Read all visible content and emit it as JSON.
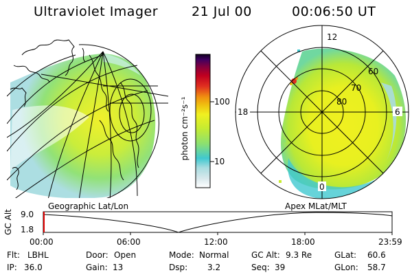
{
  "header": {
    "title": "Ultraviolet Imager",
    "date": "21 Jul 00",
    "time": "00:06:50 UT"
  },
  "colorbar": {
    "unit_label": "photon cm⁻²s⁻¹",
    "ticks": [
      "100",
      "10"
    ],
    "colors": [
      "#ffffff",
      "#d8e8ec",
      "#a8dce0",
      "#40c8d0",
      "#8ce070",
      "#c8ec30",
      "#f0f020",
      "#f0c010",
      "#f09010",
      "#e03020",
      "#c00020",
      "#800040",
      "#400060",
      "#100020"
    ]
  },
  "left_map": {
    "label": "Geographic Lat/Lon"
  },
  "right_map": {
    "label": "Apex MLat/MLT",
    "mlt_labels": {
      "top": "12",
      "left": "18",
      "right": "6",
      "bottom": "0"
    },
    "lat_labels": [
      "60",
      "70",
      "80"
    ]
  },
  "timeline": {
    "axis_title": "GC Alt",
    "y_ticks": [
      "9.0",
      "1.8"
    ],
    "x_ticks": [
      "00:00",
      "06:00",
      "12:00",
      "18:00",
      "23:59"
    ]
  },
  "info": {
    "row1": [
      {
        "label": "Flt:",
        "value": "LBHL"
      },
      {
        "label": "Door:",
        "value": "Open"
      },
      {
        "label": "Mode:",
        "value": "Normal"
      },
      {
        "label": "GC Alt:",
        "value": "9.3 Re"
      },
      {
        "label": "GLat:",
        "value": "60.6"
      }
    ],
    "row2": [
      {
        "label": "IP:",
        "value": "36.0"
      },
      {
        "label": "Gain:",
        "value": "13"
      },
      {
        "label": "Dsp:",
        "value": "3.2"
      },
      {
        "label": "Seq:",
        "value": "39"
      },
      {
        "label": "GLon:",
        "value": "58.7"
      }
    ]
  }
}
